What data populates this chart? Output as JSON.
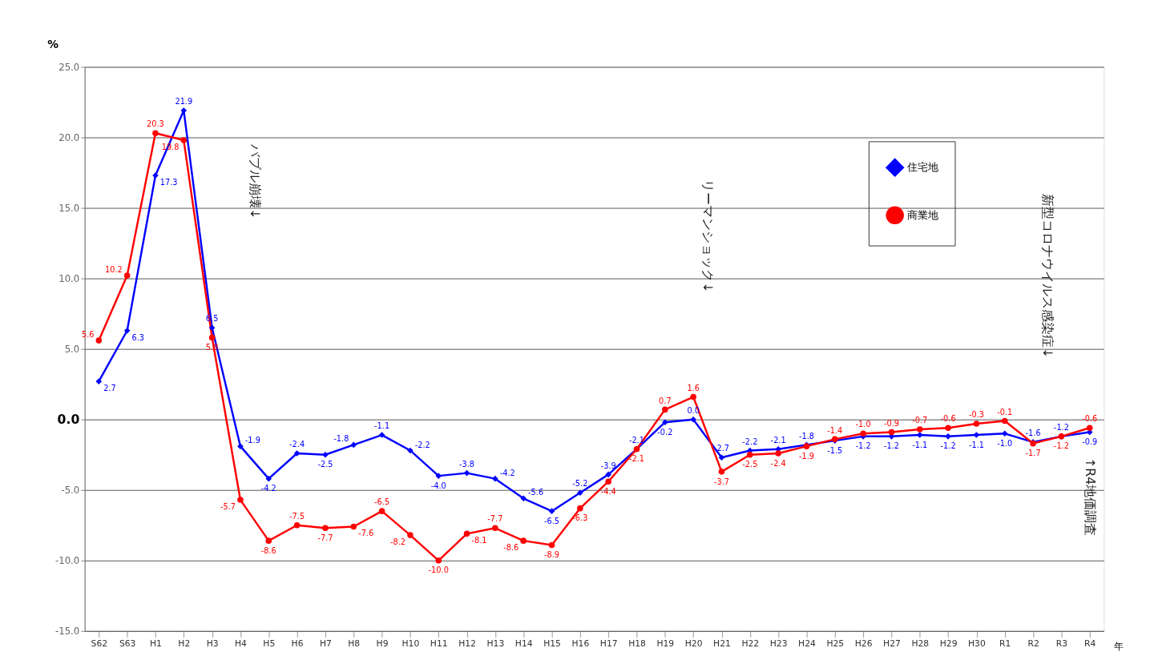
{
  "chart_data": {
    "type": "line",
    "ylabel": "%",
    "xlabel": "年",
    "categories": [
      "S62",
      "S63",
      "H1",
      "H2",
      "H3",
      "H4",
      "H5",
      "H6",
      "H7",
      "H8",
      "H9",
      "H10",
      "H11",
      "H12",
      "H13",
      "H14",
      "H15",
      "H16",
      "H17",
      "H18",
      "H19",
      "H20",
      "H21",
      "H22",
      "H23",
      "H24",
      "H25",
      "H26",
      "H27",
      "H28",
      "H29",
      "H30",
      "R1",
      "R2",
      "R3",
      "R4"
    ],
    "series": [
      {
        "name": "住宅地",
        "color": "#0000ff",
        "marker": "diamond",
        "value_labels": [
          "2.7",
          "6.3",
          "17.3",
          "21.9",
          "6.5",
          "-1.9",
          "-4.2",
          "-2.4",
          "-2.5",
          "-1.8",
          "-1.1",
          "-2.2",
          "-4.0",
          "-3.8",
          "-4.2",
          "-5.6",
          "-6.5",
          "-5.2",
          "-3.9",
          "-2.1",
          "-0.2",
          "0.0",
          "-2.7",
          "-2.2",
          "-2.1",
          "-1.8",
          "-1.5",
          "-1.2",
          "-1.2",
          "-1.1",
          "-1.2",
          "-1.1",
          "-1.0",
          "-1.6",
          "-1.2",
          "-0.9"
        ],
        "values": [
          2.7,
          6.3,
          17.3,
          21.9,
          6.5,
          -1.9,
          -4.2,
          -2.4,
          -2.5,
          -1.8,
          -1.1,
          -2.2,
          -4.0,
          -3.8,
          -4.2,
          -5.6,
          -6.5,
          -5.2,
          -3.9,
          -2.1,
          -0.2,
          0.0,
          -2.7,
          -2.2,
          -2.1,
          -1.8,
          -1.5,
          -1.2,
          -1.2,
          -1.1,
          -1.2,
          -1.1,
          -1.0,
          -1.6,
          -1.2,
          -0.9
        ]
      },
      {
        "name": "商業地",
        "color": "#ff0000",
        "marker": "circle",
        "value_labels": [
          "5.6",
          "10.2",
          "20.3",
          "19.8",
          "5.8",
          "-5.7",
          "-8.6",
          "-7.5",
          "-7.7",
          "-7.6",
          "-6.5",
          "-8.2",
          "-10.0",
          "-8.1",
          "-7.7",
          "-8.6",
          "-8.9",
          "-6.3",
          "-4.4",
          "-2.1",
          "0.7",
          "1.6",
          "-3.7",
          "-2.5",
          "-2.4",
          "-1.9",
          "-1.4",
          "-1.0",
          "-0.9",
          "-0.7",
          "-0.6",
          "-0.3",
          "-0.1",
          "-1.7",
          "-1.2",
          "-0.6"
        ],
        "values": [
          5.6,
          10.2,
          20.3,
          19.8,
          5.8,
          -5.7,
          -8.6,
          -7.5,
          -7.7,
          -7.6,
          -6.5,
          -8.2,
          -10.0,
          -8.1,
          -7.7,
          -8.6,
          -8.9,
          -6.3,
          -4.4,
          -2.1,
          0.7,
          1.6,
          -3.7,
          -2.5,
          -2.4,
          -1.9,
          -1.4,
          -1.0,
          -0.9,
          -0.7,
          -0.6,
          -0.3,
          -0.1,
          -1.7,
          -1.2,
          -0.6
        ]
      }
    ],
    "ylim": [
      -15,
      25
    ],
    "yticks": [
      {
        "value": 25,
        "label": "25.0"
      },
      {
        "value": 20,
        "label": "20.0"
      },
      {
        "value": 15,
        "label": "15.0"
      },
      {
        "value": 10,
        "label": "10.0"
      },
      {
        "value": 5,
        "label": "5.0"
      },
      {
        "value": 0,
        "label": "0.0"
      },
      {
        "value": -5,
        "label": "-5.0"
      },
      {
        "value": -10,
        "label": "-10.0"
      },
      {
        "value": -15,
        "label": "-15.0"
      }
    ],
    "grid": "y",
    "legend": "top right",
    "line_style": "solid",
    "annotations": [
      "バブル崩壊↓",
      "リーマンショック↓",
      "新型コロナウイルス感染症↓",
      "↑R4地価調査"
    ]
  }
}
